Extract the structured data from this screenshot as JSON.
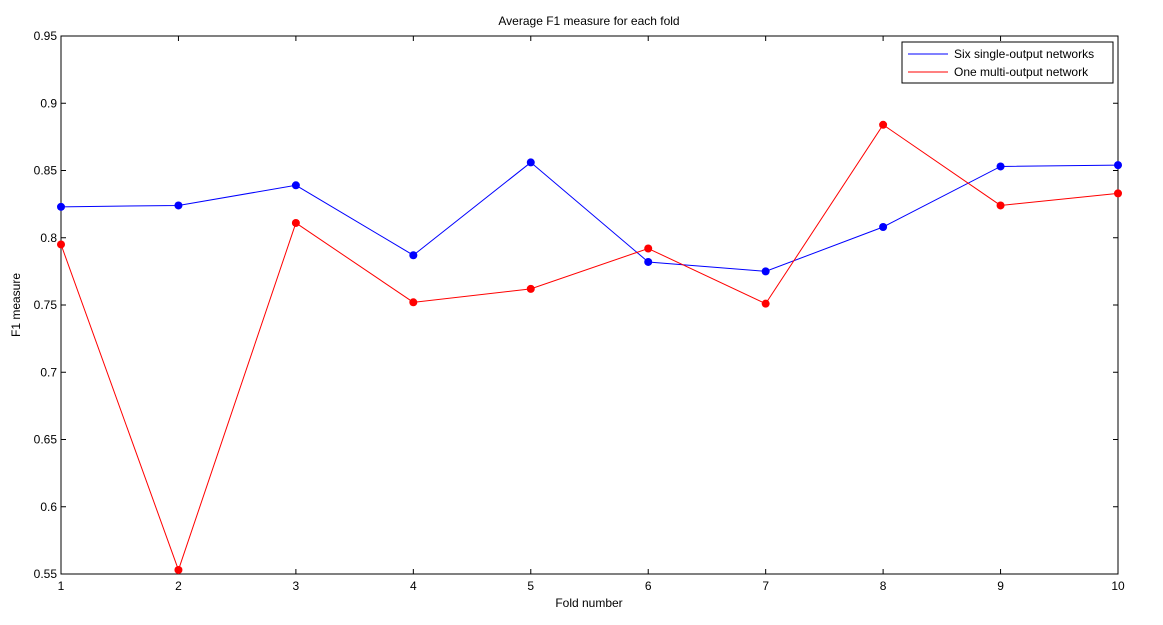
{
  "chart_data": {
    "type": "line",
    "title": "Average F1 measure for each fold",
    "xlabel": "Fold number",
    "ylabel": "F1 measure",
    "x": [
      1,
      2,
      3,
      4,
      5,
      6,
      7,
      8,
      9,
      10
    ],
    "xlim": [
      1,
      10
    ],
    "ylim": [
      0.55,
      0.95
    ],
    "xticks": [
      "1",
      "2",
      "3",
      "4",
      "5",
      "6",
      "7",
      "8",
      "9",
      "10"
    ],
    "yticks": [
      "0.55",
      "0.6",
      "0.65",
      "0.7",
      "0.75",
      "0.8",
      "0.85",
      "0.9",
      "0.95"
    ],
    "grid": false,
    "legend_position": "top-right",
    "series": [
      {
        "name": "Six single-output networks",
        "color": "#0000ff",
        "values": [
          0.823,
          0.824,
          0.839,
          0.787,
          0.856,
          0.782,
          0.775,
          0.808,
          0.853,
          0.854
        ]
      },
      {
        "name": "One multi-output network",
        "color": "#ff0000",
        "values": [
          0.795,
          0.553,
          0.811,
          0.752,
          0.762,
          0.792,
          0.751,
          0.884,
          0.824,
          0.833
        ]
      }
    ]
  }
}
